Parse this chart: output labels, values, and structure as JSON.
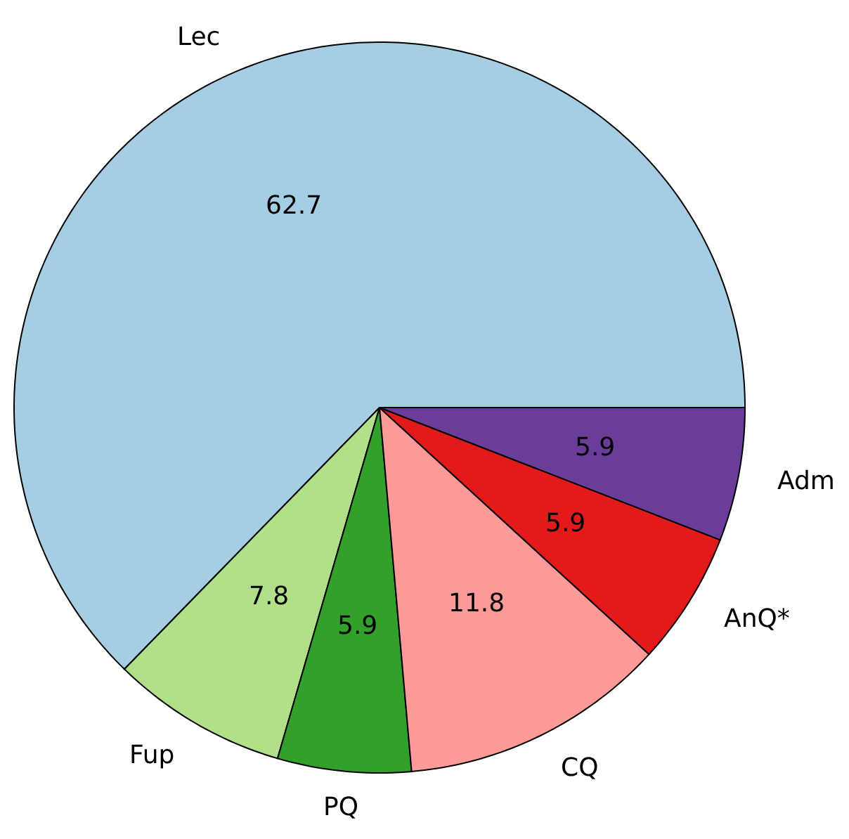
{
  "chart_data": {
    "type": "pie",
    "categories": [
      "Lec",
      "Fup",
      "PQ",
      "CQ",
      "AnQ*",
      "Adm"
    ],
    "values": [
      62.7,
      7.8,
      5.9,
      11.8,
      5.9,
      5.9
    ],
    "colors": [
      "#a6cee3",
      "#b2df8a",
      "#33a02c",
      "#fb9a99",
      "#e31a1c",
      "#6a3d9a"
    ],
    "data_labels": true
  }
}
